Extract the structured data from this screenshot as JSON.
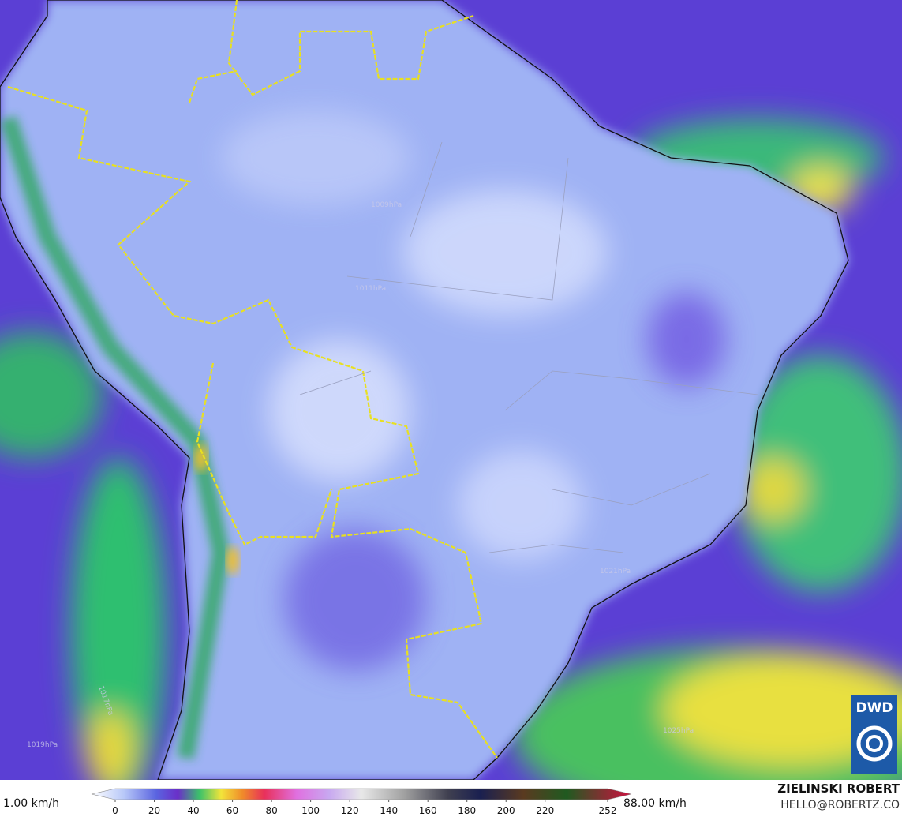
{
  "map": {
    "isobar_labels": [
      "1009hPa",
      "1011hPa",
      "1021hPa",
      "1025hPa",
      "1017hPa",
      "1019hPa"
    ]
  },
  "legend": {
    "min_label": "1.00 km/h",
    "max_label": "88.00 km/h",
    "ticks": [
      0,
      20,
      40,
      60,
      80,
      100,
      120,
      140,
      160,
      180,
      200,
      220,
      252
    ]
  },
  "branding": {
    "logo": "DWD",
    "author": "ZIELINSKI ROBERT",
    "email": "HELLO@ROBERTZ.CO"
  }
}
